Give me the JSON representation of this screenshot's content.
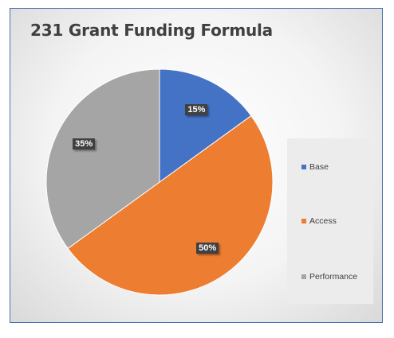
{
  "chart_data": {
    "type": "pie",
    "title": "231 Grant Funding Formula",
    "categories": [
      "Base",
      "Access",
      "Performance"
    ],
    "values": [
      15,
      50,
      35
    ],
    "data_labels": [
      "15%",
      "50%",
      "35%"
    ],
    "colors": [
      "#4472c4",
      "#ed7d31",
      "#a5a5a5"
    ],
    "legend_position": "right"
  }
}
